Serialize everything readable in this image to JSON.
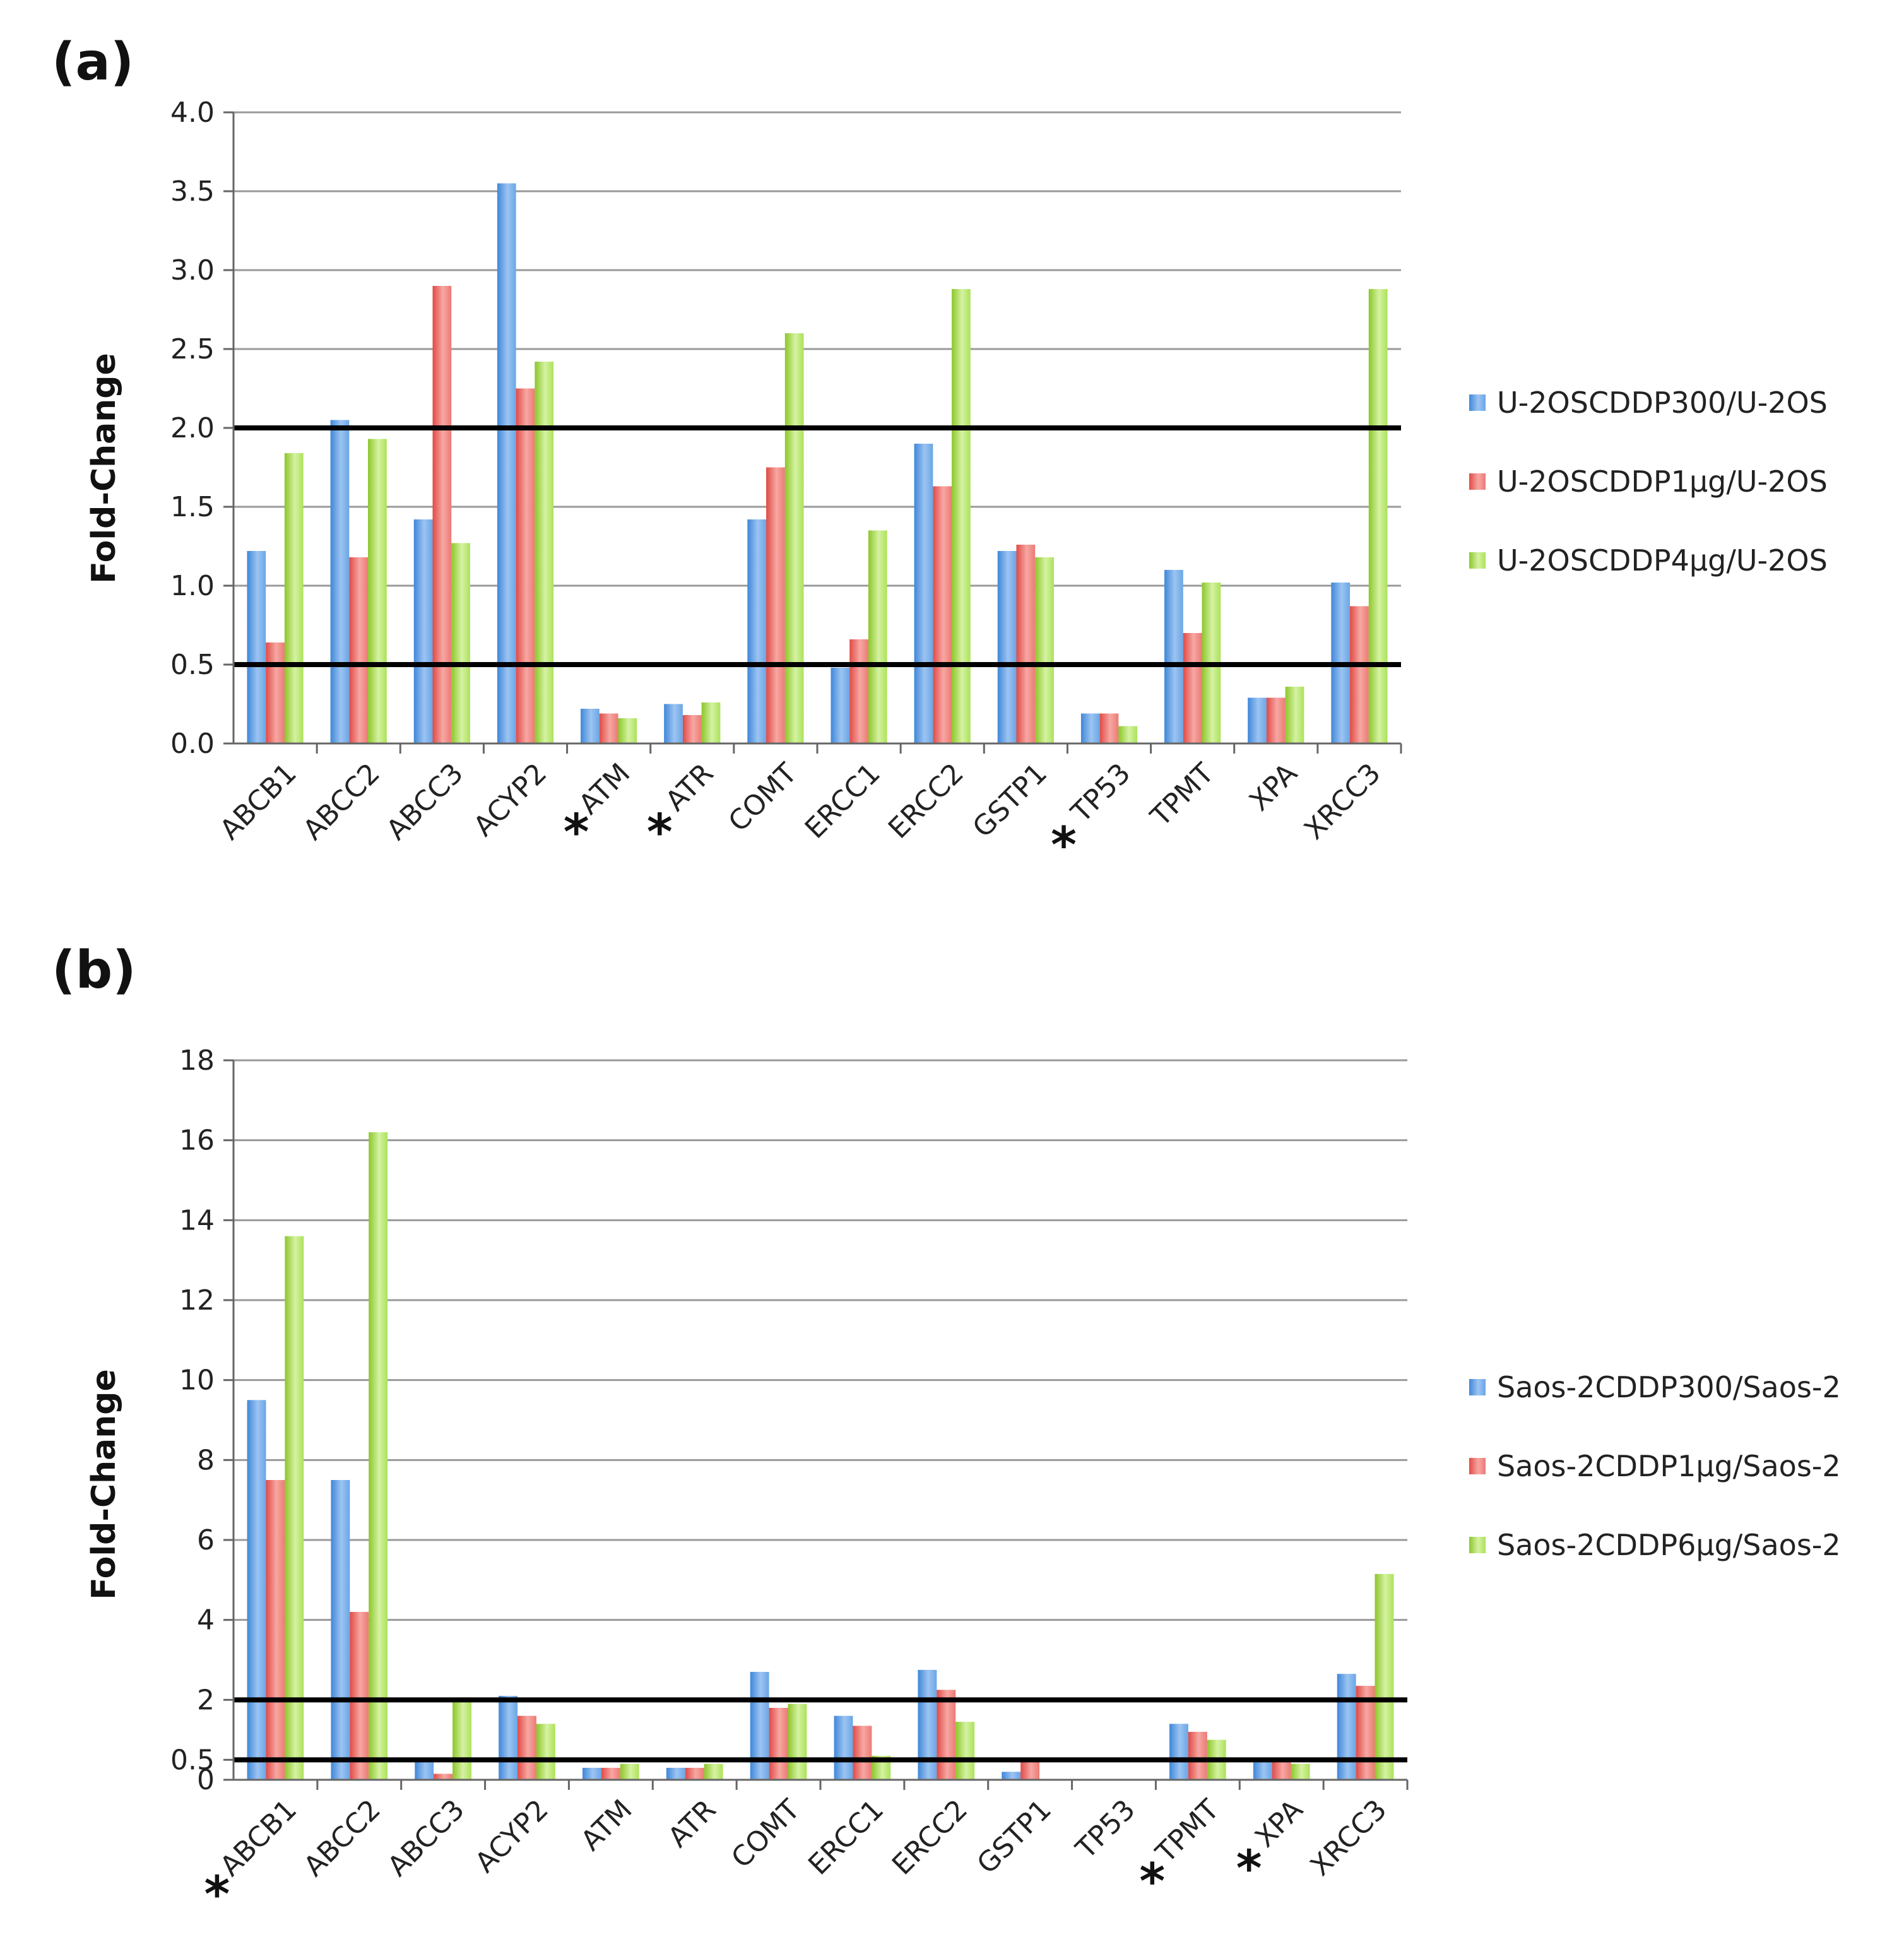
{
  "colors": {
    "series1": "#5b9bd5",
    "series2": "#e8605b",
    "series3": "#9fd03e",
    "grid": "#9a9a9a",
    "threshold": "#000000"
  },
  "chart_data": [
    {
      "type": "bar",
      "panel": "(a)",
      "ylabel": "Fold-Change",
      "ylim": [
        0,
        4
      ],
      "yticks": [
        0,
        0.5,
        1,
        1.5,
        2,
        2.5,
        3,
        3.5,
        4
      ],
      "ytick_labels": [
        "0.0",
        "0.5",
        "1.0",
        "1.5",
        "2.0",
        "2.5",
        "3.0",
        "3.5",
        "4.0"
      ],
      "thresholds": [
        0.5,
        2.0
      ],
      "grid": true,
      "legend_position": "right",
      "categories": [
        "ABCB1",
        "ABCC2",
        "ABCC3",
        "ACYP2",
        "ATM",
        "ATR",
        "COMT",
        "ERCC1",
        "ERCC2",
        "GSTP1",
        "TP53",
        "TPMT",
        "XPA",
        "XRCC3"
      ],
      "starred": [
        "ATM",
        "ATR",
        "TP53"
      ],
      "star_glyph": "*",
      "series": [
        {
          "name": "U-2OSCDDP300/U-2OS",
          "values": [
            1.22,
            2.05,
            1.42,
            3.55,
            0.22,
            0.25,
            1.42,
            0.48,
            1.9,
            1.22,
            0.19,
            1.1,
            0.29,
            1.02
          ]
        },
        {
          "name": "U-2OSCDDP1μg/U-2OS",
          "values": [
            0.64,
            1.18,
            2.9,
            2.25,
            0.19,
            0.18,
            1.75,
            0.66,
            1.63,
            1.26,
            0.19,
            0.7,
            0.29,
            0.87
          ]
        },
        {
          "name": "U-2OSCDDP4μg/U-2OS",
          "values": [
            1.84,
            1.93,
            1.27,
            2.42,
            0.16,
            0.26,
            2.6,
            1.35,
            2.88,
            1.18,
            0.11,
            1.02,
            0.36,
            2.88
          ]
        }
      ]
    },
    {
      "type": "bar",
      "panel": "(b)",
      "ylabel": "Fold-Change",
      "ylim": [
        0,
        18
      ],
      "yticks": [
        0,
        0.5,
        2,
        4,
        6,
        8,
        10,
        12,
        14,
        16,
        18
      ],
      "ytick_labels": [
        "0",
        "0.5",
        "2",
        "4",
        "6",
        "8",
        "10",
        "12",
        "14",
        "16",
        "18"
      ],
      "thresholds": [
        0.5,
        2.0
      ],
      "grid": true,
      "legend_position": "right",
      "categories": [
        "ABCB1",
        "ABCC2",
        "ABCC3",
        "ACYP2",
        "ATM",
        "ATR",
        "COMT",
        "ERCC1",
        "ERCC2",
        "GSTP1",
        "TP53",
        "TPMT",
        "XPA",
        "XRCC3"
      ],
      "starred": [
        "ABCB1",
        "TPMT",
        "XPA"
      ],
      "star_glyph": "*",
      "series": [
        {
          "name": "Saos-2CDDP300/Saos-2",
          "values": [
            9.5,
            7.5,
            0.5,
            2.1,
            0.3,
            0.3,
            2.7,
            1.6,
            2.75,
            0.2,
            0.0,
            1.4,
            0.5,
            2.65
          ]
        },
        {
          "name": "Saos-2CDDP1μg/Saos-2",
          "values": [
            7.5,
            4.2,
            0.15,
            1.6,
            0.3,
            0.3,
            1.8,
            1.35,
            2.25,
            0.5,
            0.0,
            1.2,
            0.5,
            2.35
          ]
        },
        {
          "name": "Saos-2CDDP6μg/Saos-2",
          "values": [
            13.6,
            16.2,
            2.0,
            1.4,
            0.4,
            0.4,
            1.9,
            0.6,
            1.45,
            0.0,
            0.0,
            1.0,
            0.4,
            5.15
          ]
        }
      ]
    }
  ]
}
